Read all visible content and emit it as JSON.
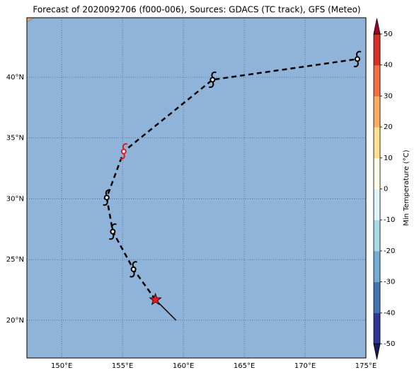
{
  "title": "Forecast of 2020092706 (f000-006), Sources: GDACS (TC track), GFS (Meteo)",
  "map": {
    "xlim": [
      147.14,
      175
    ],
    "ylim": [
      16.9,
      44.9
    ],
    "xticks": [
      {
        "value": 150,
        "label": "150°E"
      },
      {
        "value": 155,
        "label": "155°E"
      },
      {
        "value": 160,
        "label": "160°E"
      },
      {
        "value": 165,
        "label": "165°E"
      },
      {
        "value": 170,
        "label": "170°E"
      },
      {
        "value": 175,
        "label": "175°E"
      }
    ],
    "yticks": [
      {
        "value": 20,
        "label": "20°N"
      },
      {
        "value": 25,
        "label": "25°N"
      },
      {
        "value": 30,
        "label": "30°N"
      },
      {
        "value": 35,
        "label": "35°N"
      },
      {
        "value": 40,
        "label": "40°N"
      }
    ],
    "background": "#8fb3d9",
    "track": {
      "color": "#000000",
      "lon": [
        157.7,
        155.9,
        154.2,
        153.7,
        155.1,
        162.4,
        174.3
      ],
      "lat": [
        21.7,
        24.2,
        27.3,
        30.1,
        33.9,
        39.8,
        41.5
      ],
      "marker_colors": [
        "#e41a1c",
        "#000000",
        "#000000",
        "#000000",
        "#e41a1c",
        "#000000",
        "#000000"
      ]
    },
    "motion": {
      "lon": [
        157.7,
        159.4
      ],
      "lat": [
        21.7,
        20.0
      ]
    }
  },
  "colorbar": {
    "label": "Min Temperature (°C)",
    "lim": [
      -50,
      50
    ],
    "ticks": [
      -50,
      -40,
      -30,
      -20,
      -10,
      0,
      10,
      20,
      30,
      40,
      50
    ],
    "colors": [
      "#313695",
      "#4575b4",
      "#74add1",
      "#abd9e9",
      "#e0f3f8",
      "#ffffe5",
      "#fee090",
      "#fdae61",
      "#f46d43",
      "#d73027"
    ],
    "under": "#1a1a5e",
    "over": "#a50026"
  }
}
